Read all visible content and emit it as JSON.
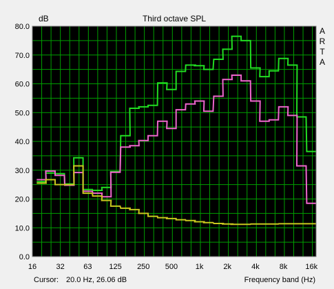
{
  "chart_data": {
    "type": "line",
    "title": "Third octave SPL",
    "ylabel": "dB",
    "xlabel": "Frequency band (Hz)",
    "ylim": [
      0,
      80
    ],
    "yticks": [
      "0.0",
      "10.0",
      "20.0",
      "30.0",
      "40.0",
      "50.0",
      "60.0",
      "70.0",
      "80.0"
    ],
    "xscale": "log",
    "xticks": [
      {
        "value": 16,
        "label": "16"
      },
      {
        "value": 32,
        "label": "32"
      },
      {
        "value": 63,
        "label": "63"
      },
      {
        "value": 125,
        "label": "125"
      },
      {
        "value": 250,
        "label": "250"
      },
      {
        "value": 500,
        "label": "500"
      },
      {
        "value": 1000,
        "label": "1k"
      },
      {
        "value": 2000,
        "label": "2k"
      },
      {
        "value": 4000,
        "label": "4k"
      },
      {
        "value": 8000,
        "label": "8k"
      },
      {
        "value": 16000,
        "label": "16k"
      }
    ],
    "bands": [
      20,
      25,
      31.5,
      40,
      50,
      63,
      80,
      100,
      125,
      160,
      200,
      250,
      315,
      400,
      500,
      630,
      800,
      1000,
      1250,
      1600,
      2000,
      2500,
      3150,
      4000,
      5000,
      6300,
      8000,
      10000,
      12500,
      16000
    ],
    "series": [
      {
        "color": "#22dd22",
        "values": [
          26.0,
          29.0,
          28.8,
          25.2,
          34.3,
          23.3,
          23.0,
          24.0,
          29.5,
          42.0,
          51.5,
          52.0,
          52.5,
          60.3,
          58.0,
          64.3,
          66.5,
          66.3,
          65.0,
          68.5,
          72.0,
          76.5,
          75.0,
          65.5,
          62.5,
          64.5,
          68.8,
          66.5,
          48.5,
          36.5
        ]
      },
      {
        "color": "#ee66cc",
        "values": [
          26.7,
          29.7,
          28.2,
          24.8,
          29.2,
          22.7,
          22.0,
          20.8,
          29.3,
          38.0,
          38.5,
          40.3,
          42.0,
          47.0,
          44.5,
          51.0,
          53.0,
          54.0,
          50.5,
          55.7,
          61.5,
          63.0,
          61.0,
          54.0,
          47.0,
          47.5,
          52.0,
          49.0,
          31.5,
          18.5
        ]
      },
      {
        "color": "#c8c81e",
        "values": [
          25.5,
          26.7,
          25.0,
          25.0,
          31.5,
          22.0,
          21.0,
          19.5,
          17.5,
          16.8,
          16.3,
          15.0,
          14.0,
          13.5,
          13.2,
          12.8,
          12.5,
          12.1,
          11.8,
          11.5,
          11.3,
          11.2,
          11.2,
          11.3,
          11.3,
          11.3,
          11.4,
          11.4,
          11.4,
          11.4
        ]
      }
    ],
    "cursor_label": "Cursor:",
    "cursor_value": "20.0 Hz, 26.06 dB",
    "brand_letters": [
      "A",
      "R",
      "T",
      "A"
    ],
    "colors": {
      "background": "#000000",
      "grid": "#00a000",
      "frame": "#f0f0f0"
    }
  }
}
